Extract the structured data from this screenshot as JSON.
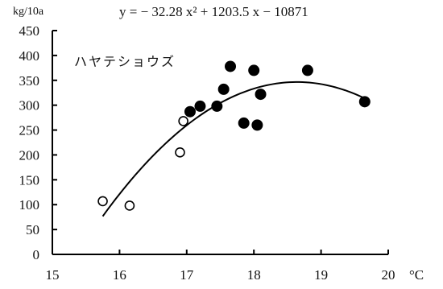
{
  "chart_data": {
    "type": "scatter",
    "title": "",
    "ylabel": "kg/10a",
    "xlabel": "°C",
    "xlim": [
      15,
      20
    ],
    "ylim": [
      0,
      450
    ],
    "xticks": [
      15,
      16,
      17,
      18,
      19,
      20
    ],
    "yticks": [
      0,
      50,
      100,
      150,
      200,
      250,
      300,
      350,
      400,
      450
    ],
    "grid": false,
    "annotations": {
      "equation": "y = − 32.28 x² + 1203.5 x − 10871",
      "variety": "ハヤテショウズ"
    },
    "fit": {
      "a": -32.28,
      "b": 1203.5,
      "c": -10871,
      "x_range": [
        15.75,
        19.65
      ]
    },
    "series": [
      {
        "marker": "open-circle",
        "points": [
          [
            15.75,
            107
          ],
          [
            16.15,
            98
          ],
          [
            16.9,
            205
          ],
          [
            16.95,
            268
          ]
        ]
      },
      {
        "marker": "filled-circle",
        "points": [
          [
            17.05,
            287
          ],
          [
            17.2,
            298
          ],
          [
            17.45,
            298
          ],
          [
            17.55,
            332
          ],
          [
            17.65,
            378
          ],
          [
            17.85,
            264
          ],
          [
            18.0,
            370
          ],
          [
            18.05,
            260
          ],
          [
            18.1,
            322
          ],
          [
            18.8,
            370
          ],
          [
            19.65,
            307
          ]
        ]
      }
    ]
  }
}
